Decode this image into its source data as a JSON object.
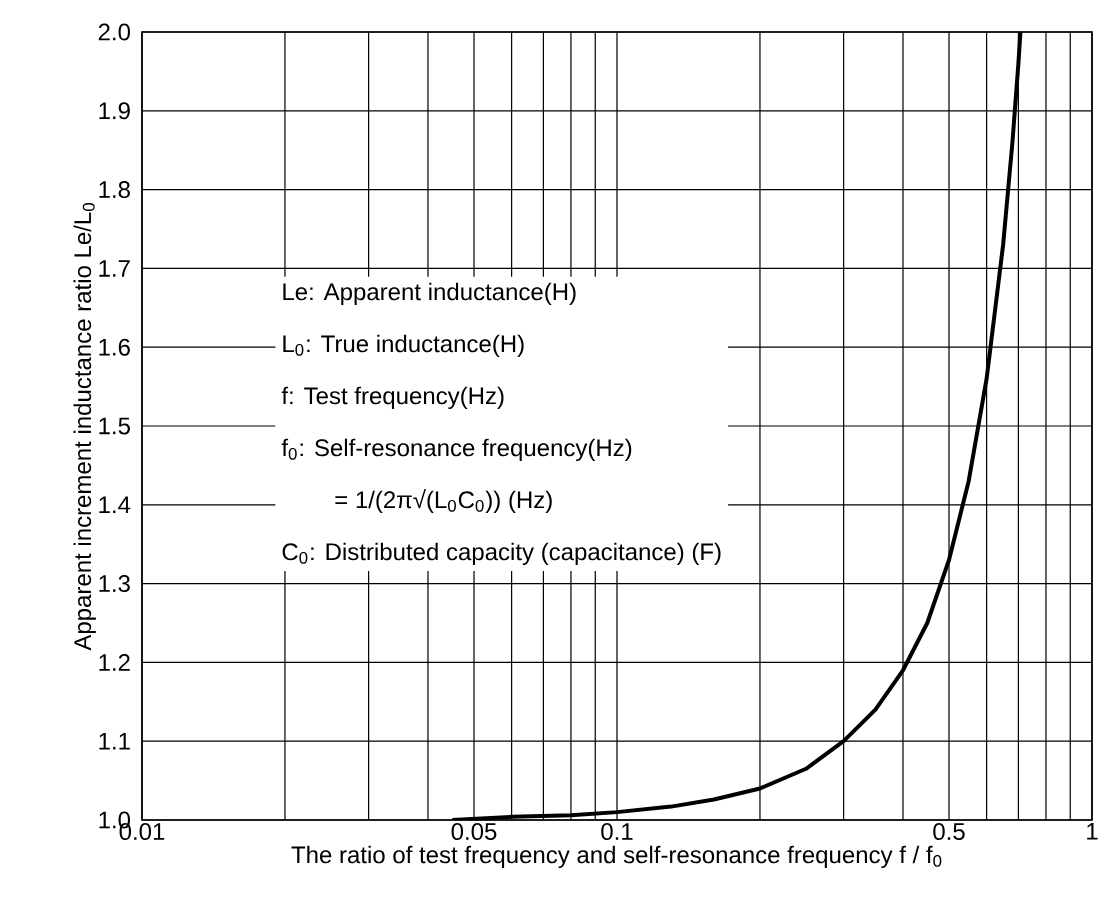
{
  "chart_data": {
    "type": "line",
    "xlabel": "The ratio of test frequency and self-resonance frequency f / f$_{0}$",
    "ylabel": "Apparent increment inductance ratio Le/L$_{0}$",
    "annotations": [
      "Le: Apparent inductance(H)",
      "L$_{0}$: True inductance(H)",
      "f:   Test frequency(Hz)",
      "f$_{0}$: Self-resonance frequency(Hz)",
      "= 1/(2π√(L$_{0}$C$_{0}$)) (Hz)",
      "C$_{0}$: Distributed capacity (capacitance) (F)"
    ],
    "log": "x",
    "grid": true,
    "marker": "none",
    "line_style": "solid",
    "xlim": [
      0.01,
      1
    ],
    "ylim": [
      1.0,
      2.0
    ],
    "xticks": [
      {
        "value": 0.01,
        "label": "0.01"
      },
      {
        "value": 0.02,
        "label": null
      },
      {
        "value": 0.03,
        "label": null
      },
      {
        "value": 0.04,
        "label": null
      },
      {
        "value": 0.05,
        "label": "0.05"
      },
      {
        "value": 0.06,
        "label": null
      },
      {
        "value": 0.07,
        "label": null
      },
      {
        "value": 0.08,
        "label": null
      },
      {
        "value": 0.09,
        "label": null
      },
      {
        "value": 0.1,
        "label": "0.1"
      },
      {
        "value": 0.2,
        "label": null
      },
      {
        "value": 0.3,
        "label": null
      },
      {
        "value": 0.4,
        "label": null
      },
      {
        "value": 0.5,
        "label": "0.5"
      },
      {
        "value": 0.6,
        "label": null
      },
      {
        "value": 0.7,
        "label": null
      },
      {
        "value": 0.8,
        "label": null
      },
      {
        "value": 0.9,
        "label": null
      },
      {
        "value": 1,
        "label": "1"
      }
    ],
    "yticks": [
      {
        "value": 1.0,
        "label": "1.0"
      },
      {
        "value": 1.1,
        "label": "1.1"
      },
      {
        "value": 1.2,
        "label": "1.2"
      },
      {
        "value": 1.3,
        "label": "1.3"
      },
      {
        "value": 1.4,
        "label": "1.4"
      },
      {
        "value": 1.5,
        "label": "1.5"
      },
      {
        "value": 1.6,
        "label": "1.6"
      },
      {
        "value": 1.7,
        "label": "1.7"
      },
      {
        "value": 1.8,
        "label": "1.8"
      },
      {
        "value": 1.9,
        "label": "1.9"
      },
      {
        "value": 2.0,
        "label": "2.0"
      }
    ],
    "x": [
      0.045,
      0.06,
      0.08,
      0.1,
      0.13,
      0.16,
      0.2,
      0.25,
      0.3,
      0.35,
      0.4,
      0.45,
      0.5,
      0.55,
      0.6,
      0.65,
      0.68,
      0.7,
      0.707
    ],
    "series": [
      {
        "color": "#000000",
        "values": [
          1.0,
          1.004,
          1.006,
          1.01,
          1.017,
          1.026,
          1.04,
          1.065,
          1.1,
          1.14,
          1.19,
          1.25,
          1.33,
          1.43,
          1.56,
          1.73,
          1.86,
          1.96,
          2.0
        ]
      }
    ]
  }
}
